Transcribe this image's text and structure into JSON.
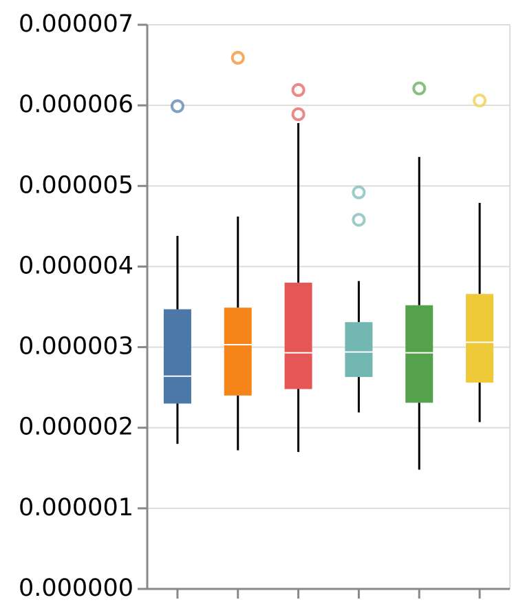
{
  "chart_data": {
    "type": "boxplot",
    "title": "",
    "xlabel": "",
    "ylabel": "",
    "ylim": [
      0,
      7e-06
    ],
    "grid": true,
    "y_ticks": [
      "0.000000",
      "0.000001",
      "0.000002",
      "0.000003",
      "0.000004",
      "0.000005",
      "0.000006",
      "0.000007"
    ],
    "y_tick_values": [
      0,
      1e-06,
      2e-06,
      3e-06,
      4e-06,
      5e-06,
      6e-06,
      7e-06
    ],
    "series": [
      {
        "color": "#4c78a8",
        "min": 1.8e-06,
        "q1": 2.3e-06,
        "median": 2.64e-06,
        "q3": 3.47e-06,
        "max": 4.38e-06,
        "outliers": [
          5.99e-06
        ]
      },
      {
        "color": "#f58518",
        "min": 1.72e-06,
        "q1": 2.4e-06,
        "median": 3.03e-06,
        "q3": 3.49e-06,
        "max": 4.62e-06,
        "outliers": [
          6.59e-06
        ]
      },
      {
        "color": "#e45756",
        "min": 1.7e-06,
        "q1": 2.48e-06,
        "median": 2.93e-06,
        "q3": 3.8e-06,
        "max": 5.78e-06,
        "outliers": [
          5.89e-06,
          6.19e-06
        ]
      },
      {
        "color": "#72b7b2",
        "min": 2.19e-06,
        "q1": 2.63e-06,
        "median": 2.94e-06,
        "q3": 3.31e-06,
        "max": 3.82e-06,
        "outliers": [
          4.58e-06,
          4.92e-06
        ]
      },
      {
        "color": "#54a24b",
        "min": 1.48e-06,
        "q1": 2.31e-06,
        "median": 2.93e-06,
        "q3": 3.52e-06,
        "max": 5.36e-06,
        "outliers": [
          6.21e-06
        ]
      },
      {
        "color": "#eeca3b",
        "min": 2.07e-06,
        "q1": 2.56e-06,
        "median": 3.06e-06,
        "q3": 3.66e-06,
        "max": 4.79e-06,
        "outliers": [
          6.06e-06
        ]
      }
    ]
  }
}
